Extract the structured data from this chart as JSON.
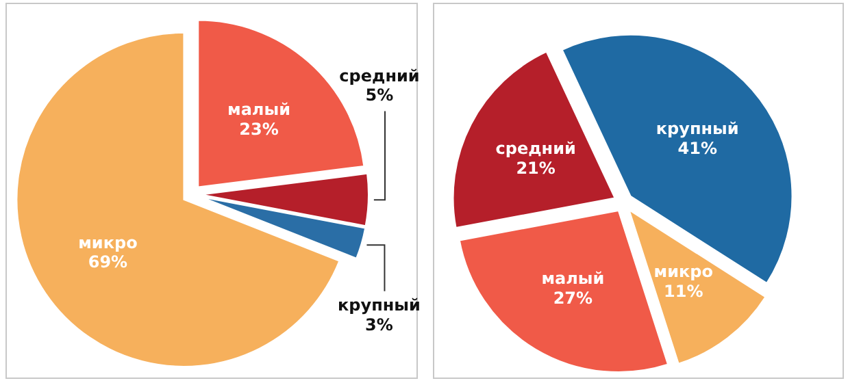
{
  "chart_data": [
    {
      "type": "pie",
      "categories": [
        "малый",
        "средний",
        "крупный",
        "микро"
      ],
      "values": [
        23,
        5,
        3,
        69
      ],
      "value_labels": [
        "23%",
        "5%",
        "3%",
        "69%"
      ],
      "colors": [
        "#f05a48",
        "#b51f2a",
        "#2a6ea6",
        "#f6b05c"
      ]
    },
    {
      "type": "pie",
      "categories": [
        "крупный",
        "микро",
        "малый",
        "средний"
      ],
      "values": [
        41,
        11,
        27,
        21
      ],
      "value_labels": [
        "41%",
        "11%",
        "27%",
        "21%"
      ],
      "colors": [
        "#1f6aa3",
        "#f6b05c",
        "#f05a48",
        "#b51f2a"
      ]
    }
  ]
}
